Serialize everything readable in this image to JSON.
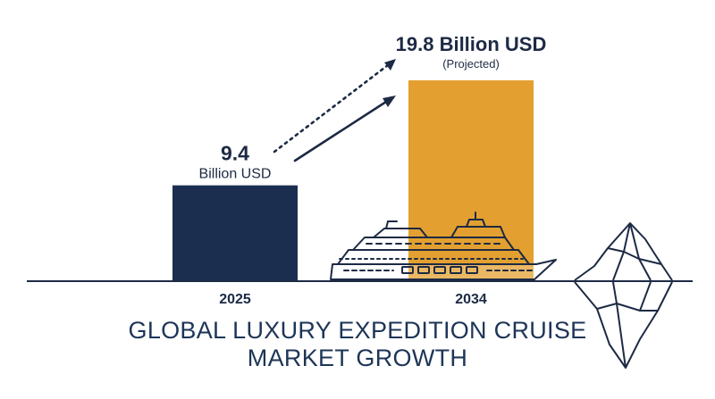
{
  "chart_data": {
    "type": "bar",
    "title_lines": [
      "GLOBAL LUXURY EXPEDITION CRUISE",
      "MARKET GROWTH"
    ],
    "categories": [
      "2025",
      "2034"
    ],
    "values": [
      9.4,
      19.8
    ],
    "value_labels": [
      "9.4",
      "19.8 Billion USD"
    ],
    "value_sublabels": [
      "Billion USD",
      "(Projected)"
    ],
    "unit": "Billion USD",
    "projected": [
      false,
      true
    ],
    "colors": [
      "#1b2e4f",
      "#e3a030"
    ],
    "ylim": [
      0,
      19.8
    ],
    "grid": false,
    "legend": "none"
  },
  "decorations": {
    "ship_icon": "cruise-ship-icon",
    "iceberg_icon": "iceberg-icon",
    "arrow_icon": "growth-arrow-icon",
    "line_color": "#1d2a44"
  }
}
